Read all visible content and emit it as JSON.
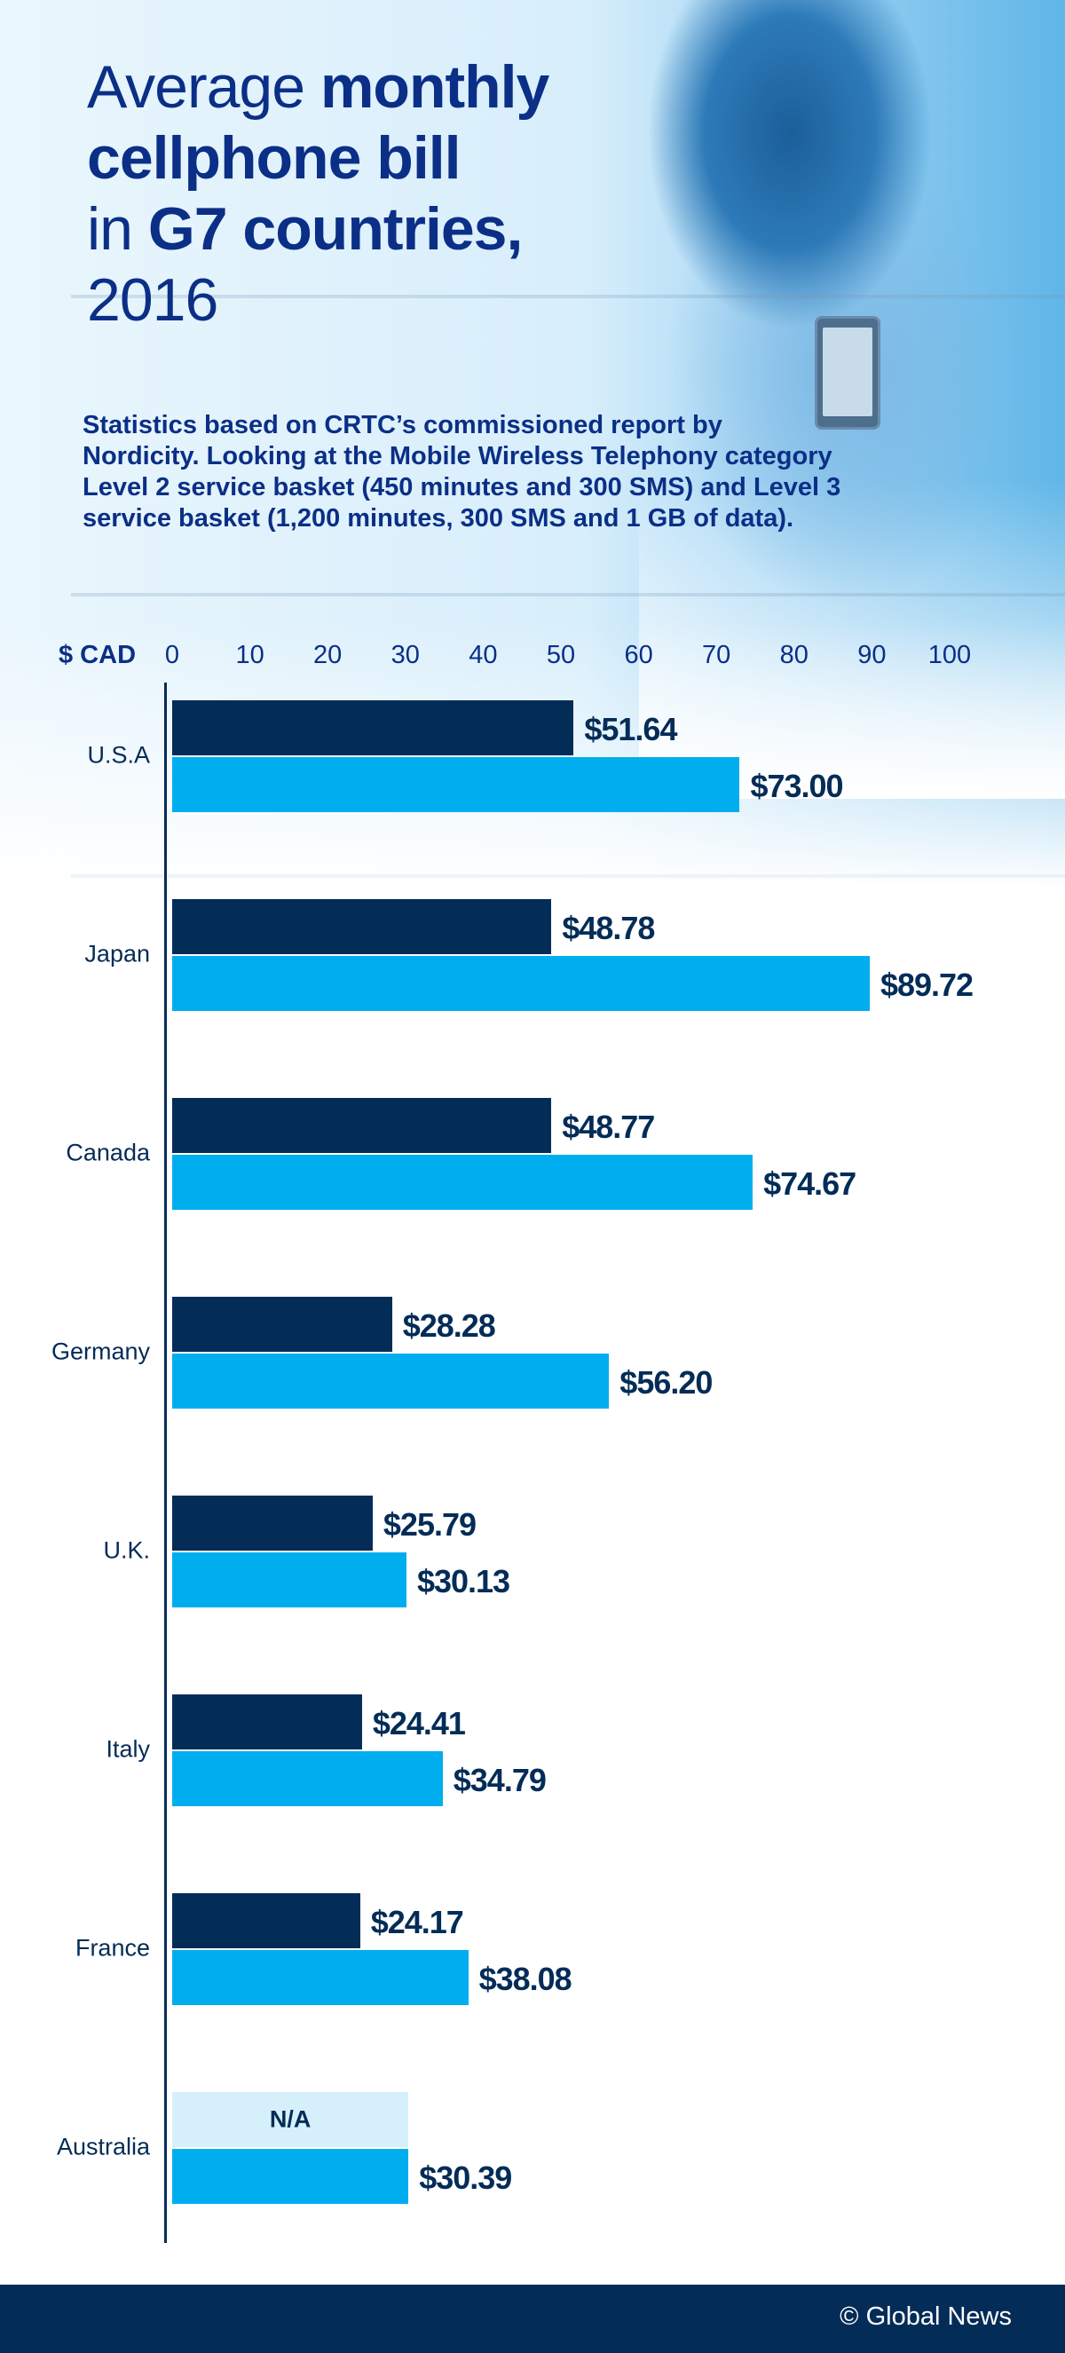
{
  "header": {
    "title_parts": [
      "Average ",
      "monthly",
      "cellphone bill",
      "in ",
      "G7 countries,",
      "2016"
    ],
    "subtitle": "Statistics based on CRTC’s commissioned report by Nordicity. Looking at the Mobile Wireless Telephony category Level 2 service basket (450 minutes and 300 SMS) and Level 3 service basket (1,200 minutes, 300 SMS and 1 GB of data)."
  },
  "chart_data": {
    "type": "bar",
    "orientation": "horizontal",
    "unit_label": "$ CAD",
    "xlim": [
      0,
      100
    ],
    "x_ticks": [
      "0",
      "10",
      "20",
      "30",
      "40",
      "50",
      "60",
      "70",
      "80",
      "90",
      "100"
    ],
    "categories": [
      "U.S.A",
      "Japan",
      "Canada",
      "Germany",
      "U.K.",
      "Italy",
      "France",
      "Australia"
    ],
    "series": [
      {
        "values": [
          51.64,
          48.78,
          48.77,
          28.28,
          25.79,
          24.41,
          24.17,
          null
        ],
        "labels": [
          "$51.64",
          "$48.78",
          "$48.77",
          "$28.28",
          "$25.79",
          "$24.41",
          "$24.17",
          "N/A"
        ],
        "color": "#032c57",
        "na_color": "#d6f0fb"
      },
      {
        "values": [
          73.0,
          89.72,
          74.67,
          56.2,
          30.13,
          34.79,
          38.08,
          30.39
        ],
        "labels": [
          "$73.00",
          "$89.72",
          "$74.67",
          "$56.20",
          "$30.13",
          "$34.79",
          "$38.08",
          "$30.39"
        ],
        "color": "#00aeef"
      }
    ],
    "grid": false,
    "legend": "none"
  },
  "footer": {
    "credit": "© Global News"
  }
}
